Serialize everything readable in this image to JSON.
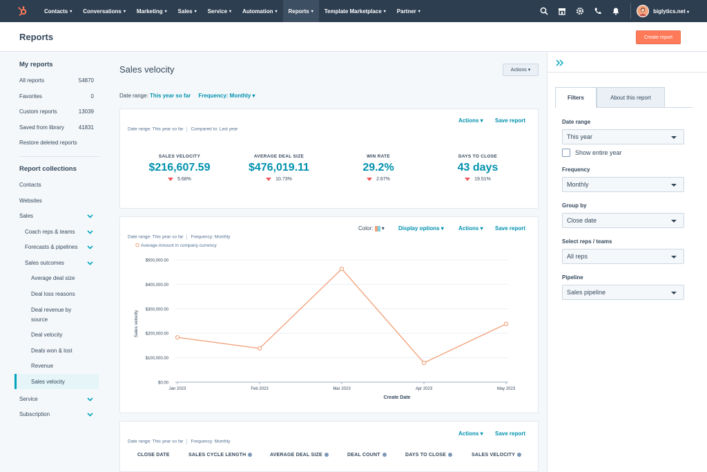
{
  "topnav": {
    "items": [
      "Contacts",
      "Conversations",
      "Marketing",
      "Sales",
      "Service",
      "Automation",
      "Reports",
      "Template Marketplace",
      "Partner"
    ],
    "active": "Reports",
    "account": "biglytics.net"
  },
  "page": {
    "title": "Reports",
    "create_button": "Create report"
  },
  "sidebar": {
    "my_reports_heading": "My reports",
    "my_reports": [
      {
        "label": "All reports",
        "count": "54870"
      },
      {
        "label": "Favorites",
        "count": "0"
      },
      {
        "label": "Custom reports",
        "count": "13039"
      },
      {
        "label": "Saved from library",
        "count": "41831"
      },
      {
        "label": "Restore deleted reports",
        "count": ""
      }
    ],
    "collections_heading": "Report collections",
    "collections": {
      "contacts": "Contacts",
      "websites": "Websites",
      "sales": "Sales",
      "coach": "Coach reps & teams",
      "forecasts": "Forecasts & pipelines",
      "outcomes": "Sales outcomes",
      "avg_deal": "Average deal size",
      "loss": "Deal loss reasons",
      "revenue_by_source_1": "Deal revenue by",
      "revenue_by_source_2": "source",
      "velocity": "Deal velocity",
      "won_lost": "Deals won & lost",
      "revenue": "Revenue",
      "sales_velocity": "Sales velocity",
      "service": "Service",
      "subscription": "Subscription"
    }
  },
  "report": {
    "title": "Sales velocity",
    "actions": "Actions",
    "date_range_label": "Date range:",
    "date_range_value": "This year so far",
    "frequency_label": "Frequency: Monthly"
  },
  "card1": {
    "actions": "Actions",
    "save": "Save report",
    "meta_range": "Date range: This year so far",
    "meta_compare": "Compared to: Last year",
    "kpis": [
      {
        "label": "SALES VELOCITY",
        "value": "$216,607.59",
        "change": "5.68%"
      },
      {
        "label": "AVERAGE DEAL SIZE",
        "value": "$476,019.11",
        "change": "10.73%"
      },
      {
        "label": "WIN RATE",
        "value": "29.2%",
        "change": "2.67%"
      },
      {
        "label": "DAYS TO CLOSE",
        "value": "43 days",
        "change": "19.51%"
      }
    ]
  },
  "card2": {
    "color_label": "Color:",
    "display_options": "Display options",
    "actions": "Actions",
    "save": "Save report",
    "meta_range": "Date range: This year so far",
    "meta_freq": "Frequency: Monthly"
  },
  "chart_data": {
    "type": "line",
    "title": "",
    "xlabel": "Create Date",
    "ylabel": "Sales velocity",
    "series": [
      {
        "name": "Average Amount in company currency",
        "color": "#f2a37c",
        "values": [
          183000,
          138000,
          463000,
          79000,
          238000
        ]
      }
    ],
    "x": [
      "Jan 2023",
      "Feb 2023",
      "Mar 2023",
      "Apr 2023",
      "May 2023"
    ],
    "y_ticks": [
      "$0.00",
      "$100,000.00",
      "$200,000.00",
      "$300,000.00",
      "$400,000.00",
      "$500,000.00"
    ],
    "ylim": [
      0,
      500000
    ],
    "grid": true
  },
  "card3": {
    "actions": "Actions",
    "save": "Save report",
    "meta_range": "Date range: This year so far",
    "meta_freq": "Frequency: Monthly",
    "columns": [
      "CLOSE DATE",
      "SALES CYCLE LENGTH",
      "AVERAGE DEAL SIZE",
      "DEAL COUNT",
      "DAYS TO CLOSE",
      "SALES VELOCITY"
    ]
  },
  "filters": {
    "tab_filters": "Filters",
    "tab_about": "About this report",
    "date_range_label": "Date range",
    "date_range_value": "This year",
    "show_entire_year": "Show entire year",
    "frequency_label": "Frequency",
    "frequency_value": "Monthly",
    "group_by_label": "Group by",
    "group_by_value": "Close date",
    "reps_label": "Select reps / teams",
    "reps_value": "All reps",
    "pipeline_label": "Pipeline",
    "pipeline_value": "Sales pipeline"
  },
  "colors": {
    "accent": "#0091ae",
    "brand": "#ff7a59",
    "nav": "#2d3e50",
    "line": "#f2a37c"
  }
}
